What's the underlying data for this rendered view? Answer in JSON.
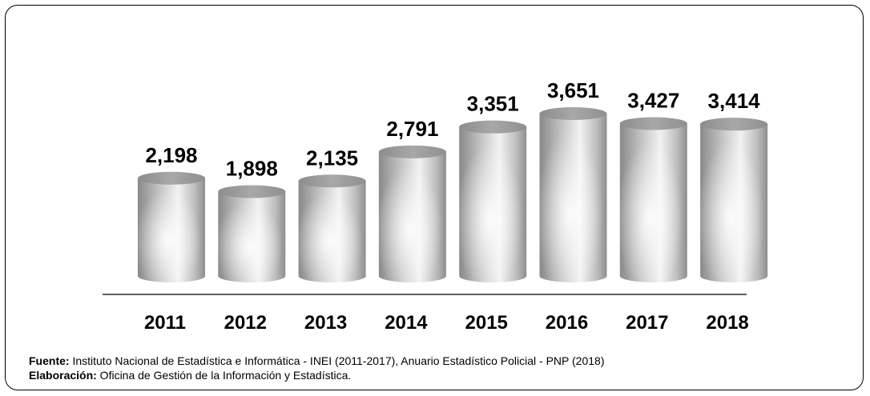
{
  "chart_data": {
    "type": "bar",
    "categories": [
      "2011",
      "2012",
      "2013",
      "2014",
      "2015",
      "2016",
      "2017",
      "2018"
    ],
    "values": [
      2198,
      1898,
      2135,
      2791,
      3351,
      3651,
      3427,
      3414
    ],
    "value_labels": [
      "2,198",
      "1,898",
      "2,135",
      "2,791",
      "3,351",
      "3,651",
      "3,427",
      "3,414"
    ],
    "ylim": [
      0,
      3651
    ]
  },
  "notes": {
    "source_label": "Fuente:",
    "source_text": " Instituto Nacional de Estadística e Informática - INEI (2011-2017), Anuario Estadístico Policial - PNP (2018)",
    "credit_label": "Elaboración:",
    "credit_text": " Oficina de Gestión de la Información y Estadística."
  }
}
